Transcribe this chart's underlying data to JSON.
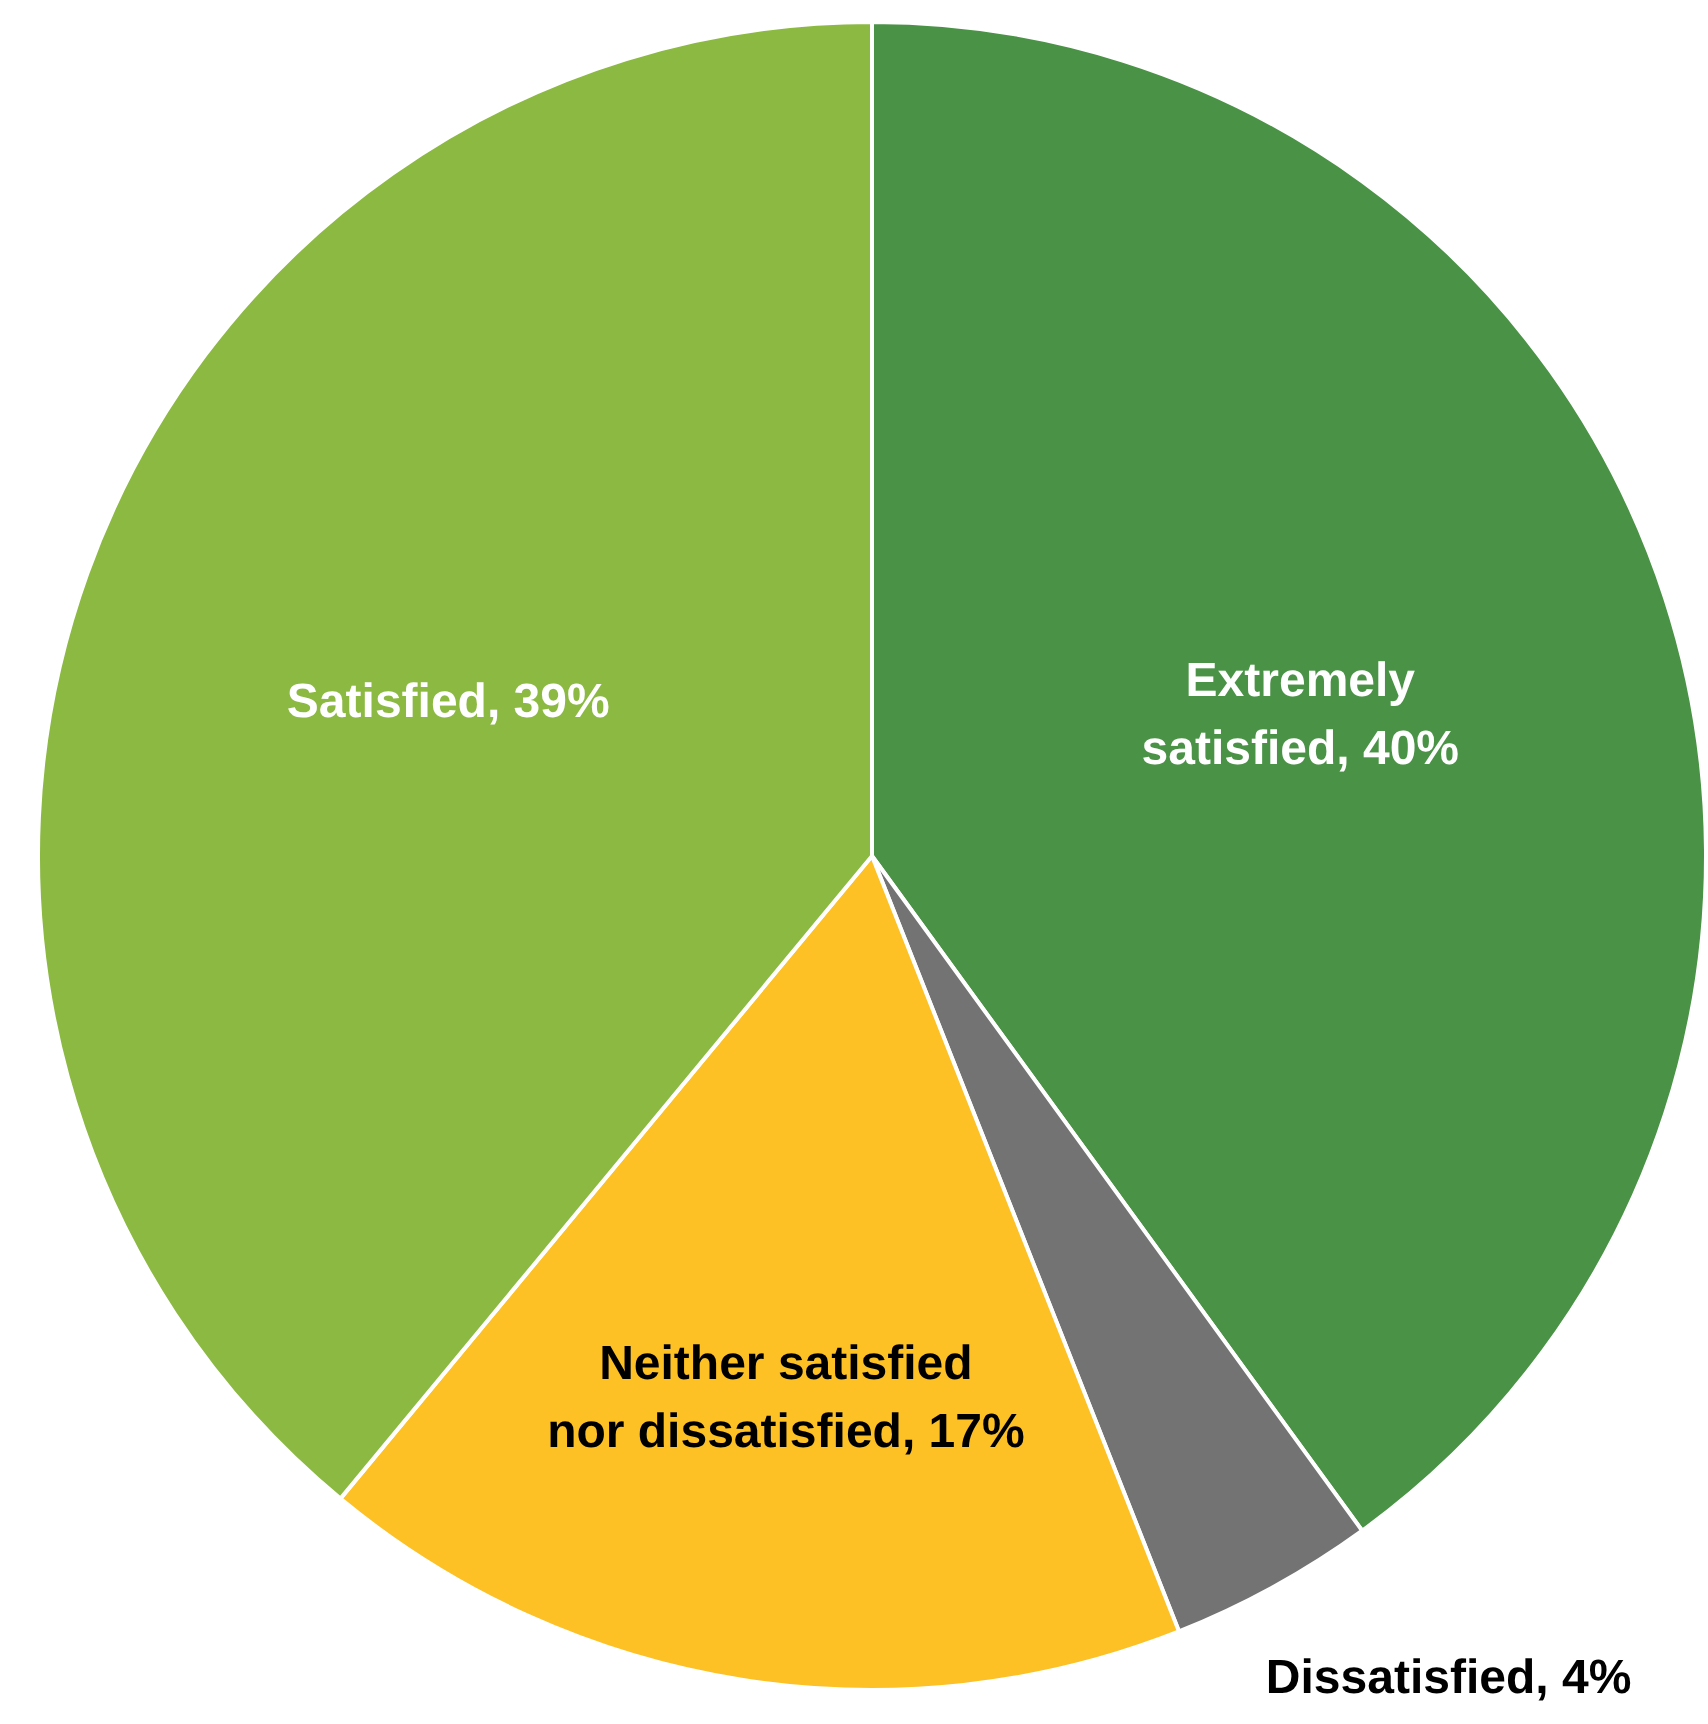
{
  "chart_data": {
    "type": "pie",
    "categories": [
      "Extremely satisfied",
      "Dissatisfied",
      "Neither satisfied nor dissatisfied",
      "Satisfied"
    ],
    "values": [
      40,
      4,
      17,
      39
    ],
    "colors": [
      "#4a9246",
      "#737373",
      "#fdc125",
      "#8bb942"
    ],
    "value_labels": [
      "40%",
      "4%",
      "17%",
      "39%"
    ]
  }
}
